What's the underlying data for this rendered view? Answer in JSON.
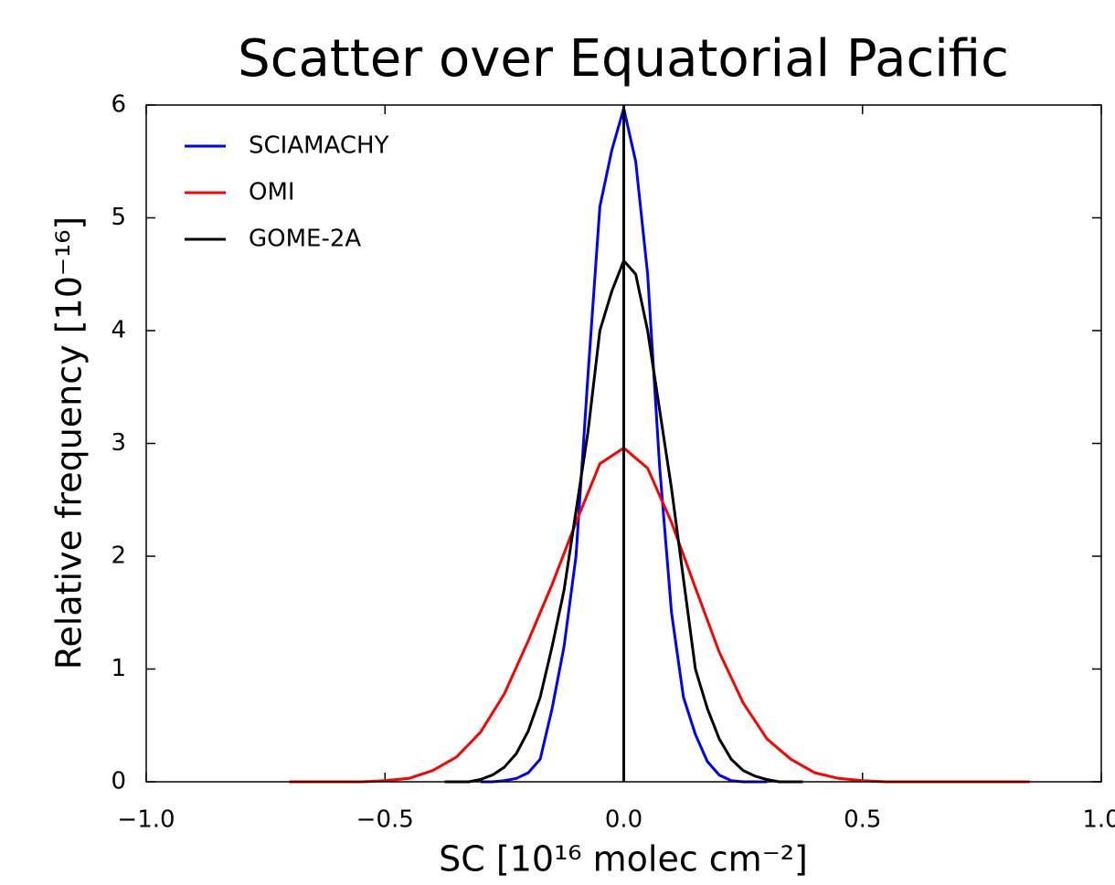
{
  "chart_data": {
    "type": "line",
    "title": "Scatter over Equatorial Pacific",
    "xlabel": "SC [10¹⁶ molec cm⁻²]",
    "ylabel": "Relative frequency [10⁻¹⁶]",
    "xlim": [
      -1,
      1
    ],
    "ylim": [
      0,
      6
    ],
    "xticks": [
      {
        "value": -1,
        "label": "−1.0"
      },
      {
        "value": -0.5,
        "label": "−0.5"
      },
      {
        "value": 0,
        "label": "0.0"
      },
      0.5,
      {
        "value": 1,
        "label": "1.0"
      }
    ],
    "yticks": [
      0,
      1,
      2,
      3,
      4,
      5,
      6
    ],
    "vline": 0,
    "vline_color": "#000000",
    "legend": "upper left",
    "series": [
      {
        "name": "SCIAMACHY",
        "color": "#0000ff",
        "x": [
          -0.3,
          -0.275,
          -0.25,
          -0.225,
          -0.2,
          -0.175,
          -0.15,
          -0.125,
          -0.1,
          -0.075,
          -0.05,
          -0.025,
          0,
          0.025,
          0.05,
          0.075,
          0.1,
          0.125,
          0.15,
          0.175,
          0.2,
          0.225,
          0.25,
          0.275,
          0.3
        ],
        "values": [
          0,
          0,
          0.01,
          0.03,
          0.08,
          0.2,
          0.65,
          1.2,
          2.0,
          3.6,
          5.1,
          5.6,
          5.97,
          5.5,
          4.5,
          2.8,
          1.5,
          0.75,
          0.42,
          0.18,
          0.06,
          0.01,
          0,
          0,
          0
        ]
      },
      {
        "name": "OMI",
        "color": "#ff0000",
        "x": [
          -0.7,
          -0.65,
          -0.6,
          -0.55,
          -0.5,
          -0.45,
          -0.4,
          -0.35,
          -0.3,
          -0.25,
          -0.2,
          -0.15,
          -0.1,
          -0.05,
          0,
          0.05,
          0.1,
          0.15,
          0.2,
          0.25,
          0.3,
          0.35,
          0.4,
          0.45,
          0.5,
          0.55,
          0.6,
          0.65,
          0.7,
          0.75,
          0.8,
          0.85
        ],
        "values": [
          0,
          0,
          0,
          0,
          0.01,
          0.03,
          0.1,
          0.22,
          0.44,
          0.78,
          1.25,
          1.75,
          2.3,
          2.82,
          2.96,
          2.78,
          2.3,
          1.72,
          1.15,
          0.7,
          0.38,
          0.2,
          0.08,
          0.03,
          0.01,
          0,
          0,
          0,
          0,
          0,
          0,
          0
        ]
      },
      {
        "name": "GOME-2A",
        "color": "#000000",
        "x": [
          -0.375,
          -0.35,
          -0.325,
          -0.3,
          -0.275,
          -0.25,
          -0.225,
          -0.2,
          -0.175,
          -0.15,
          -0.125,
          -0.1,
          -0.075,
          -0.05,
          -0.025,
          0,
          0.025,
          0.05,
          0.075,
          0.1,
          0.125,
          0.15,
          0.175,
          0.2,
          0.225,
          0.25,
          0.275,
          0.3,
          0.325,
          0.35,
          0.375
        ],
        "values": [
          0,
          0,
          0,
          0.02,
          0.06,
          0.13,
          0.25,
          0.45,
          0.75,
          1.2,
          1.7,
          2.4,
          3.1,
          4.0,
          4.35,
          4.62,
          4.5,
          4.0,
          3.3,
          2.6,
          1.8,
          1.0,
          0.65,
          0.38,
          0.2,
          0.1,
          0.05,
          0.02,
          0,
          0,
          0
        ]
      }
    ]
  }
}
